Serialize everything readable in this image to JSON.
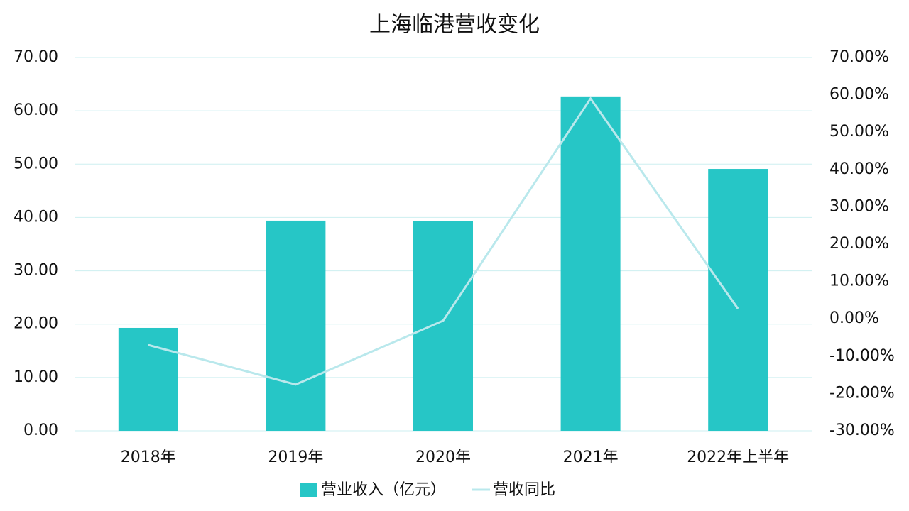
{
  "chart_data": {
    "type": "bar",
    "title": "上海临港营收变化",
    "categories": [
      "2018年",
      "2019年",
      "2020年",
      "2021年",
      "2022年上半年"
    ],
    "series": [
      {
        "name": "营业收入（亿元）",
        "type": "bar",
        "color": "#26c6c6",
        "values": [
          19.3,
          39.4,
          39.3,
          62.7,
          49.1
        ]
      },
      {
        "name": "营收同比",
        "type": "line",
        "axis": "y2",
        "color": "#b9e8ec",
        "values": [
          -7.0,
          -17.6,
          -0.5,
          59.0,
          2.7
        ]
      }
    ],
    "ylim": [
      0,
      70
    ],
    "yticks": [
      {
        "value": 0,
        "label": "0.00"
      },
      {
        "value": 10,
        "label": "10.00"
      },
      {
        "value": 20,
        "label": "20.00"
      },
      {
        "value": 30,
        "label": "30.00"
      },
      {
        "value": 40,
        "label": "40.00"
      },
      {
        "value": 50,
        "label": "50.00"
      },
      {
        "value": 60,
        "label": "60.00"
      },
      {
        "value": 70,
        "label": "70.00"
      }
    ],
    "y2lim": [
      -30,
      70
    ],
    "y2ticks": [
      {
        "value": -30,
        "label": "-30.00%"
      },
      {
        "value": -20,
        "label": "-20.00%"
      },
      {
        "value": -10,
        "label": "-10.00%"
      },
      {
        "value": 0,
        "label": "0.00%"
      },
      {
        "value": 10,
        "label": "10.00%"
      },
      {
        "value": 20,
        "label": "20.00%"
      },
      {
        "value": 30,
        "label": "30.00%"
      },
      {
        "value": 40,
        "label": "40.00%"
      },
      {
        "value": 50,
        "label": "50.00%"
      },
      {
        "value": 60,
        "label": "60.00%"
      },
      {
        "value": 70,
        "label": "70.00%"
      }
    ],
    "grid": true,
    "legend": "bottom"
  }
}
